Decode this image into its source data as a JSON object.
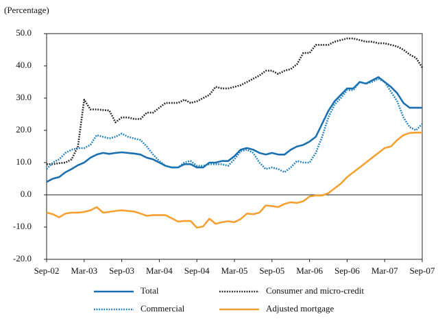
{
  "chart_data": {
    "type": "line",
    "ylabel": "(Percentage)",
    "categories": [
      "Sep-02",
      null,
      null,
      null,
      null,
      null,
      "Mar-03",
      null,
      null,
      null,
      null,
      null,
      "Sep-03",
      null,
      null,
      null,
      null,
      null,
      "Mar-04",
      null,
      null,
      null,
      null,
      null,
      "Sep-04",
      null,
      null,
      null,
      null,
      null,
      "Mar-05",
      null,
      null,
      null,
      null,
      null,
      "Sep-05",
      null,
      null,
      null,
      null,
      null,
      "Mar-06",
      null,
      null,
      null,
      null,
      null,
      "Sep-06",
      null,
      null,
      null,
      null,
      null,
      "Mar-07",
      null,
      null,
      null,
      null,
      null,
      "Sep-07"
    ],
    "ylim": [
      -20,
      50
    ],
    "yticks": [
      {
        "value": 50,
        "label": "50.0"
      },
      {
        "value": 40,
        "label": "40.0"
      },
      {
        "value": 30,
        "label": "30.0"
      },
      {
        "value": 20,
        "label": "20.0"
      },
      {
        "value": 10,
        "label": "10.0"
      },
      {
        "value": 0,
        "label": "0.0"
      },
      {
        "value": -10,
        "label": "-10.0"
      },
      {
        "value": -20,
        "label": "-20.0"
      }
    ],
    "series": [
      {
        "name": "Total",
        "color": "#1a6fb0",
        "style": "solid",
        "values": [
          4.0,
          5.0,
          5.5,
          7.0,
          8.0,
          9.2,
          10.0,
          11.5,
          12.5,
          13.0,
          12.7,
          13.0,
          13.2,
          13.0,
          12.8,
          12.5,
          11.5,
          11.0,
          10.0,
          9.0,
          8.5,
          8.5,
          9.5,
          9.5,
          8.5,
          8.5,
          10.0,
          10.0,
          10.5,
          10.5,
          12.0,
          14.0,
          14.5,
          14.0,
          13.0,
          12.5,
          13.0,
          12.5,
          12.5,
          14.0,
          15.0,
          15.5,
          16.5,
          18.0,
          22.0,
          26.0,
          29.0,
          31.0,
          33.0,
          33.0,
          35.0,
          34.5,
          35.5,
          36.5,
          35.0,
          33.5,
          31.5,
          28.5,
          27.0,
          27.0,
          27.0
        ]
      },
      {
        "name": "Consumer and micro-credit",
        "color": "#222222",
        "style": "dotted",
        "values": [
          9.5,
          9.5,
          9.8,
          10.0,
          11.0,
          15.0,
          29.5,
          26.5,
          26.5,
          26.3,
          26.2,
          22.5,
          24.0,
          24.0,
          23.5,
          23.5,
          25.5,
          25.5,
          27.0,
          28.5,
          28.5,
          28.5,
          29.5,
          28.5,
          29.0,
          30.0,
          31.0,
          33.5,
          33.0,
          33.0,
          33.5,
          34.0,
          35.0,
          36.0,
          37.0,
          38.5,
          38.5,
          37.5,
          38.5,
          39.0,
          40.5,
          44.0,
          44.0,
          46.5,
          46.5,
          46.5,
          47.5,
          48.0,
          48.5,
          48.5,
          48.0,
          47.5,
          47.5,
          47.0,
          47.0,
          46.5,
          46.0,
          45.0,
          43.5,
          42.5,
          39.5
        ]
      },
      {
        "name": "Commercial",
        "color": "#1a7fc1",
        "style": "dotted",
        "values": [
          8.0,
          10.0,
          11.0,
          13.0,
          14.0,
          14.5,
          14.5,
          15.5,
          18.5,
          18.0,
          17.5,
          18.0,
          19.0,
          18.0,
          17.5,
          17.0,
          15.0,
          12.5,
          10.5,
          9.0,
          8.5,
          8.5,
          10.0,
          10.5,
          9.0,
          9.0,
          9.5,
          9.5,
          9.5,
          9.0,
          11.0,
          13.5,
          14.0,
          13.0,
          10.0,
          8.0,
          8.5,
          8.0,
          7.0,
          8.5,
          10.5,
          10.0,
          10.0,
          13.0,
          18.0,
          24.0,
          28.0,
          30.0,
          32.5,
          32.5,
          35.0,
          34.5,
          35.0,
          36.0,
          35.0,
          32.0,
          29.0,
          24.0,
          21.0,
          20.0,
          22.0
        ]
      },
      {
        "name": "Adjusted mortgage",
        "color": "#f5a030",
        "style": "solid",
        "values": [
          -5.5,
          -6.0,
          -7.0,
          -5.8,
          -5.5,
          -5.5,
          -5.3,
          -4.8,
          -3.8,
          -5.5,
          -5.3,
          -5.0,
          -4.8,
          -5.0,
          -5.2,
          -5.8,
          -6.5,
          -6.3,
          -6.3,
          -6.3,
          -7.3,
          -8.3,
          -8.1,
          -8.1,
          -10.2,
          -9.8,
          -7.4,
          -9.0,
          -8.5,
          -8.2,
          -8.5,
          -7.5,
          -5.8,
          -6.0,
          -5.5,
          -3.3,
          -3.5,
          -3.8,
          -2.8,
          -2.3,
          -2.5,
          -2.0,
          -0.5,
          -0.2,
          -0.2,
          0.5,
          2.0,
          3.5,
          5.5,
          7.0,
          8.5,
          10.0,
          11.5,
          13.0,
          14.5,
          15.0,
          17.0,
          18.5,
          19.2,
          19.3,
          19.3
        ]
      }
    ]
  }
}
